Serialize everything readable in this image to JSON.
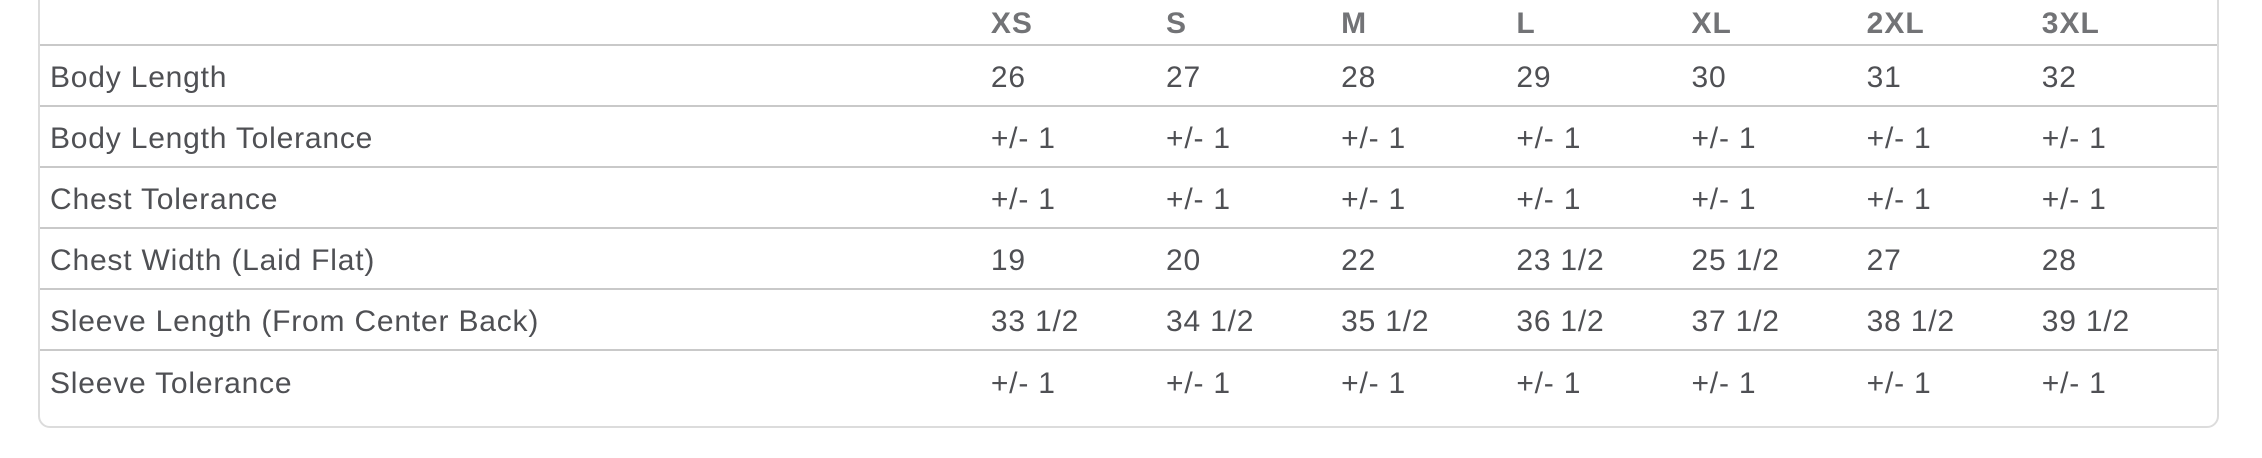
{
  "size_chart": {
    "columns": [
      "XS",
      "S",
      "M",
      "L",
      "XL",
      "2XL",
      "3XL"
    ],
    "rows": [
      {
        "label": "Body Length",
        "values": [
          "26",
          "27",
          "28",
          "29",
          "30",
          "31",
          "32"
        ]
      },
      {
        "label": "Body Length Tolerance",
        "values": [
          "+/- 1",
          "+/- 1",
          "+/- 1",
          "+/- 1",
          "+/- 1",
          "+/- 1",
          "+/- 1"
        ]
      },
      {
        "label": "Chest Tolerance",
        "values": [
          "+/- 1",
          "+/- 1",
          "+/- 1",
          "+/- 1",
          "+/- 1",
          "+/- 1",
          "+/- 1"
        ]
      },
      {
        "label": "Chest Width (Laid Flat)",
        "values": [
          "19",
          "20",
          "22",
          "23 1/2",
          "25 1/2",
          "27",
          "28"
        ]
      },
      {
        "label": "Sleeve Length (From Center Back)",
        "values": [
          "33 1/2",
          "34 1/2",
          "35 1/2",
          "36 1/2",
          "37 1/2",
          "38 1/2",
          "39 1/2"
        ]
      },
      {
        "label": "Sleeve Tolerance",
        "values": [
          "+/- 1",
          "+/- 1",
          "+/- 1",
          "+/- 1",
          "+/- 1",
          "+/- 1",
          "+/- 1"
        ]
      }
    ],
    "colors": {
      "body_text": "#4f5054",
      "header_text": "#727376",
      "row_separator": "#c9c9c9",
      "card_border": "#dcdcdc",
      "background": "#ffffff"
    }
  }
}
